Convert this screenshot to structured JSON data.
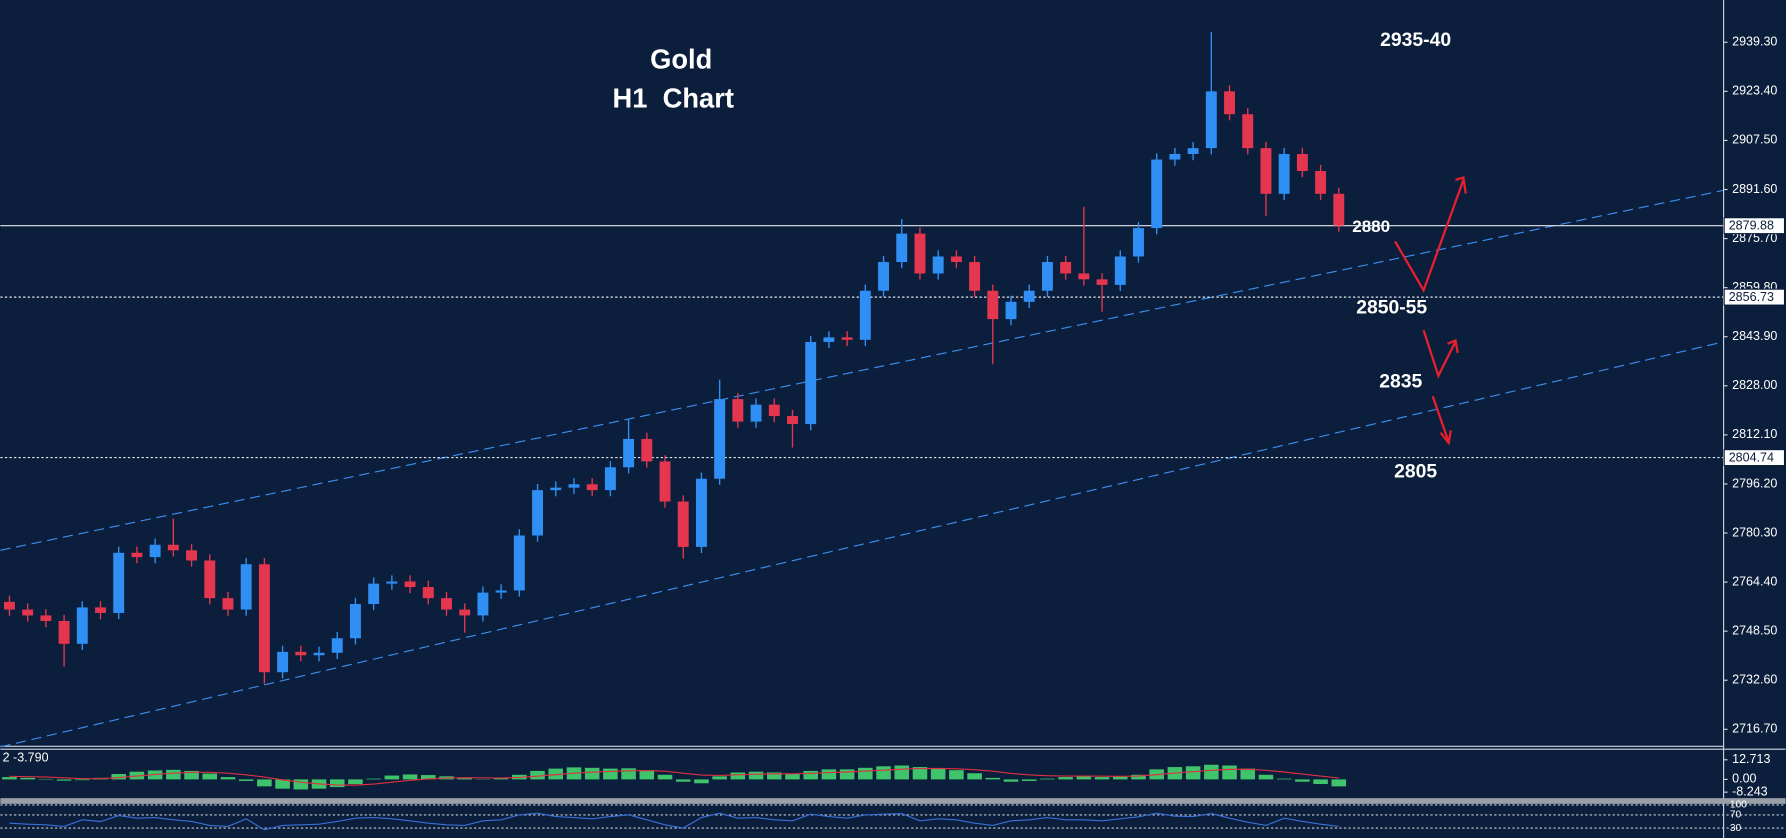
{
  "chart_data": [
    {
      "type": "candlestick",
      "title": "Gold",
      "subtitle": "H1  Chart",
      "open": [
        2758.0,
        2755.5,
        2753.6,
        2751.8,
        2744.4,
        2756.2,
        2754.4,
        2773.9,
        2772.5,
        2776.5,
        2774.7,
        2771.4,
        2759.2,
        2755.5,
        2770.2,
        2735.2,
        2741.8,
        2740.7,
        2741.5,
        2746.2,
        2757.3,
        2763.9,
        2764.6,
        2762.8,
        2759.2,
        2755.5,
        2753.6,
        2761.0,
        2761.7,
        2779.5,
        2794.2,
        2795.0,
        2796.1,
        2794.2,
        2801.6,
        2810.8,
        2803.5,
        2790.5,
        2775.8,
        2797.9,
        2823.7,
        2816.4,
        2821.9,
        2818.2,
        2815.6,
        2842.2,
        2843.7,
        2842.9,
        2858.8,
        2868.1,
        2877.3,
        2864.4,
        2869.9,
        2868.1,
        2858.8,
        2849.6,
        2855.2,
        2858.8,
        2868.1,
        2864.4,
        2862.5,
        2860.7,
        2869.9,
        2879.1,
        2901.3,
        2903.1,
        2905.0,
        2923.4,
        2916.0,
        2905.0,
        2890.2,
        2903.1,
        2897.6,
        2890.2
      ],
      "high": [
        2760.0,
        2757.5,
        2755.6,
        2753.8,
        2758.2,
        2758.2,
        2775.9,
        2775.9,
        2778.5,
        2785.0,
        2776.7,
        2773.4,
        2761.2,
        2772.2,
        2772.2,
        2743.8,
        2743.8,
        2743.5,
        2748.2,
        2759.3,
        2765.9,
        2766.6,
        2766.6,
        2764.8,
        2761.2,
        2757.5,
        2763.0,
        2763.7,
        2781.5,
        2796.2,
        2797.0,
        2798.1,
        2798.1,
        2803.6,
        2817.0,
        2812.8,
        2805.5,
        2792.5,
        2799.9,
        2830.0,
        2825.7,
        2823.9,
        2823.9,
        2820.2,
        2844.2,
        2845.7,
        2845.7,
        2860.8,
        2870.1,
        2882.0,
        2879.3,
        2871.9,
        2871.9,
        2870.1,
        2860.8,
        2857.2,
        2860.8,
        2870.1,
        2870.1,
        2886.0,
        2864.5,
        2871.9,
        2881.1,
        2903.3,
        2905.1,
        2907.0,
        2942.6,
        2925.4,
        2918.0,
        2907.0,
        2905.1,
        2905.1,
        2899.6,
        2892.2
      ],
      "low": [
        2753.5,
        2751.6,
        2749.8,
        2737.0,
        2742.4,
        2752.4,
        2752.4,
        2770.5,
        2770.5,
        2772.7,
        2769.4,
        2757.2,
        2753.5,
        2753.5,
        2731.5,
        2733.2,
        2738.7,
        2738.7,
        2739.5,
        2744.2,
        2755.3,
        2761.9,
        2760.8,
        2757.2,
        2753.5,
        2748.0,
        2751.6,
        2759.0,
        2759.7,
        2777.5,
        2792.2,
        2793.0,
        2792.2,
        2792.2,
        2799.6,
        2801.5,
        2788.5,
        2772.0,
        2773.8,
        2795.9,
        2814.4,
        2814.4,
        2816.2,
        2808.0,
        2813.6,
        2840.2,
        2840.9,
        2840.9,
        2856.8,
        2866.1,
        2862.4,
        2862.4,
        2866.1,
        2856.8,
        2835.0,
        2847.6,
        2853.2,
        2856.8,
        2862.4,
        2860.5,
        2852.0,
        2858.7,
        2867.9,
        2877.1,
        2899.3,
        2901.1,
        2903.0,
        2914.0,
        2903.0,
        2883.0,
        2888.2,
        2895.6,
        2888.2,
        2877.9
      ],
      "close": [
        2755.5,
        2753.6,
        2751.8,
        2744.4,
        2756.2,
        2754.4,
        2773.9,
        2772.5,
        2776.5,
        2774.7,
        2771.4,
        2759.2,
        2755.5,
        2770.2,
        2735.2,
        2741.8,
        2740.7,
        2741.5,
        2746.2,
        2757.3,
        2763.9,
        2764.6,
        2762.8,
        2759.2,
        2755.5,
        2753.6,
        2761.0,
        2761.7,
        2779.5,
        2794.2,
        2795.0,
        2796.1,
        2794.2,
        2801.6,
        2810.8,
        2803.5,
        2790.5,
        2775.8,
        2797.9,
        2823.7,
        2816.4,
        2821.9,
        2818.2,
        2815.6,
        2842.2,
        2843.7,
        2842.9,
        2858.8,
        2868.1,
        2877.3,
        2864.4,
        2869.9,
        2868.1,
        2858.8,
        2849.6,
        2855.2,
        2858.8,
        2868.1,
        2864.4,
        2862.5,
        2860.7,
        2869.9,
        2879.1,
        2901.3,
        2903.1,
        2905.0,
        2923.4,
        2916.0,
        2905.0,
        2890.2,
        2903.1,
        2897.6,
        2890.2,
        2879.9
      ],
      "up_color": "#2f8ff5",
      "down_color": "#e5364f",
      "xlim": [
        0,
        94.6
      ],
      "ylim": [
        2711.0,
        2953.0
      ],
      "yticks": [
        {
          "value": 2939.3,
          "label": "2939.30"
        },
        {
          "value": 2923.4,
          "label": "2923.40"
        },
        {
          "value": 2907.5,
          "label": "2907.50"
        },
        {
          "value": 2891.6,
          "label": "2891.60"
        },
        {
          "value": 2875.7,
          "label": "2875.70"
        },
        {
          "value": 2859.8,
          "label": "2859.80"
        },
        {
          "value": 2843.9,
          "label": "2843.90"
        },
        {
          "value": 2828,
          "label": "2828.00"
        },
        {
          "value": 2812.1,
          "label": "2812.10"
        },
        {
          "value": 2796.2,
          "label": "2796.20"
        },
        {
          "value": 2780.3,
          "label": "2780.30"
        },
        {
          "value": 2764.4,
          "label": "2764.40"
        },
        {
          "value": 2748.5,
          "label": "2748.50"
        },
        {
          "value": 2732.6,
          "label": "2732.60"
        },
        {
          "value": 2716.7,
          "label": "2716.70"
        }
      ],
      "price_levels": [
        {
          "value": 2879.88,
          "line": "solid"
        },
        {
          "value": 2856.73,
          "line": "dotted"
        },
        {
          "value": 2804.74,
          "line": "dotted"
        }
      ],
      "trendline_color": "#3c8ff0",
      "trendlines": [
        {
          "x": [
            0,
            94.6
          ],
          "y": [
            2774.7,
            2891.3
          ]
        },
        {
          "x": [
            0,
            94.6
          ],
          "y": [
            2711.0,
            2842.2
          ]
        }
      ],
      "annotations": [
        {
          "text": "2935-40",
          "color": "#2b8ef0"
        },
        {
          "text": "2880",
          "color": "#ffffff"
        },
        {
          "text": "2850-55",
          "color": "#ffffff"
        },
        {
          "text": "2835",
          "color": "#2b8ef0"
        },
        {
          "text": "2805",
          "color": "#ffffff"
        }
      ]
    },
    {
      "type": "macd",
      "label": "2 -3.790",
      "histogram": [
        1.5,
        1.0,
        0.3,
        -0.8,
        -0.5,
        1.0,
        3.5,
        5.0,
        5.8,
        6.2,
        5.5,
        3.8,
        1.5,
        -1.0,
        -4.5,
        -6.0,
        -6.5,
        -6.0,
        -5.0,
        -3.0,
        0.5,
        2.5,
        3.2,
        2.8,
        2.0,
        0.8,
        0.2,
        0.6,
        3.0,
        5.5,
        7.0,
        7.8,
        7.5,
        7.0,
        7.2,
        6.0,
        3.0,
        -1.5,
        -2.5,
        2.0,
        4.5,
        5.0,
        4.5,
        3.5,
        5.5,
        6.5,
        6.5,
        7.5,
        8.5,
        9.0,
        8.0,
        7.2,
        6.0,
        4.0,
        1.0,
        -1.5,
        -1.0,
        0.5,
        1.5,
        2.0,
        1.5,
        1.8,
        3.0,
        6.5,
        8.0,
        8.5,
        9.5,
        9.0,
        7.0,
        3.0,
        0.5,
        -1.5,
        -3.0,
        -4.5
      ],
      "signal": [
        2.0,
        1.8,
        1.5,
        1.0,
        0.5,
        0.5,
        1.2,
        2.2,
        3.2,
        4.0,
        4.6,
        4.6,
        4.0,
        3.0,
        1.5,
        -0.3,
        -1.8,
        -2.9,
        -3.6,
        -3.7,
        -3.0,
        -1.8,
        -0.6,
        0.3,
        0.9,
        1.1,
        1.0,
        0.9,
        1.3,
        2.1,
        3.1,
        4.0,
        4.7,
        5.2,
        5.6,
        5.7,
        5.3,
        4.0,
        2.8,
        2.6,
        3.0,
        3.4,
        3.6,
        3.6,
        3.9,
        4.4,
        4.8,
        5.4,
        6.0,
        6.6,
        7.0,
        7.1,
        6.9,
        6.3,
        5.3,
        3.9,
        2.9,
        2.4,
        2.2,
        2.2,
        2.1,
        2.0,
        2.2,
        3.1,
        4.1,
        5.0,
        5.9,
        6.5,
        6.6,
        5.9,
        4.8,
        3.5,
        2.2,
        0.9
      ],
      "histogram_color": "#3fc46c",
      "signal_color": "#e0303f",
      "ylim": [
        -11.4,
        18.1
      ],
      "yticks": [
        12.713,
        {
          "value": 0,
          "label": "0.00"
        },
        -8.243
      ]
    },
    {
      "type": "line",
      "values": [
        45,
        42,
        40,
        35,
        55,
        50,
        68,
        60,
        62,
        55,
        50,
        38,
        35,
        58,
        25,
        38,
        40,
        42,
        50,
        60,
        62,
        58,
        52,
        45,
        40,
        38,
        52,
        55,
        70,
        75,
        65,
        62,
        58,
        65,
        70,
        55,
        40,
        30,
        62,
        75,
        60,
        62,
        55,
        52,
        72,
        65,
        60,
        70,
        72,
        74,
        52,
        58,
        55,
        45,
        38,
        52,
        55,
        62,
        55,
        55,
        52,
        58,
        64,
        75,
        66,
        65,
        74,
        60,
        48,
        38,
        60,
        50,
        42,
        35
      ],
      "color": "#3a6fd8",
      "ylim": [
        0,
        100
      ],
      "yticks": [
        100,
        70,
        30
      ]
    }
  ]
}
